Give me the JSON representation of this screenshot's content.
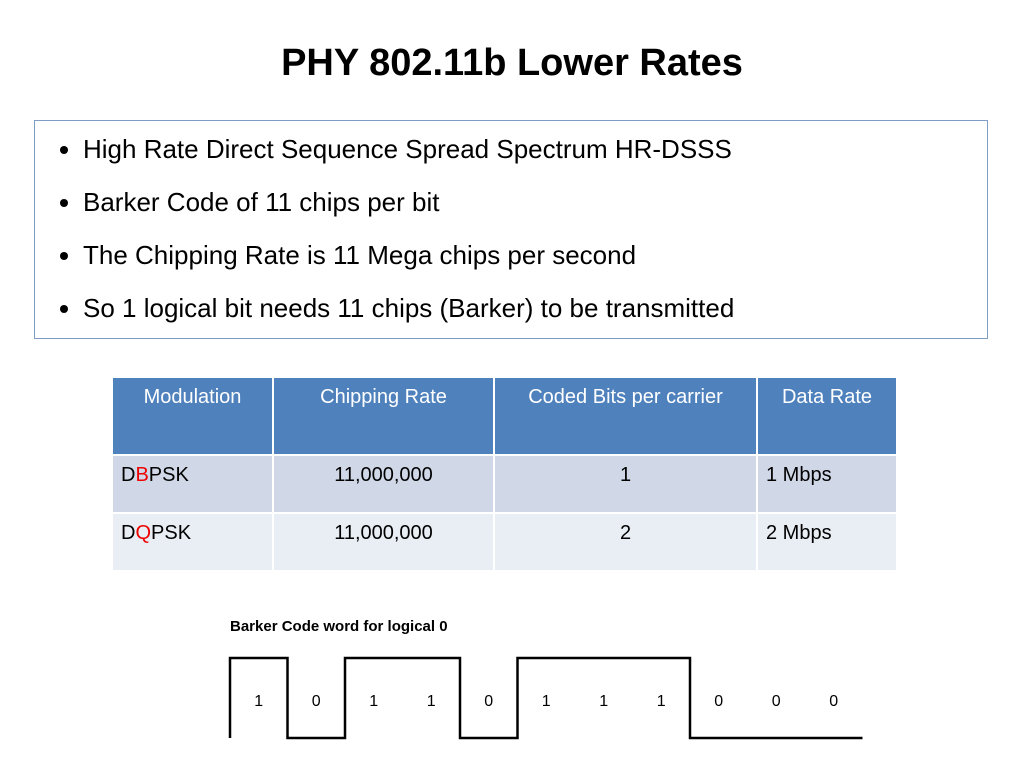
{
  "header": {
    "title": "PHY 802.11b Lower Rates"
  },
  "bullets": [
    "High Rate Direct Sequence Spread Spectrum HR-DSSS",
    "Barker Code of 11 chips per bit",
    "The Chipping Rate is 11 Mega chips per second",
    "So 1 logical bit needs 11 chips (Barker) to be transmitted"
  ],
  "table": {
    "columns": [
      "Modulation",
      "Chipping Rate",
      "Coded Bits per carrier",
      "Data Rate"
    ],
    "rows": [
      [
        [
          "D",
          "B",
          "PSK"
        ],
        "11,000,000",
        "1",
        "1 Mbps"
      ],
      [
        [
          "D",
          "Q",
          "PSK"
        ],
        "11,000,000",
        "2",
        "2 Mbps"
      ]
    ]
  },
  "barker": {
    "label": "Barker Code word for logical 0",
    "bits": [
      "1",
      "0",
      "1",
      "1",
      "0",
      "1",
      "1",
      "1",
      "0",
      "0",
      "0"
    ]
  }
}
